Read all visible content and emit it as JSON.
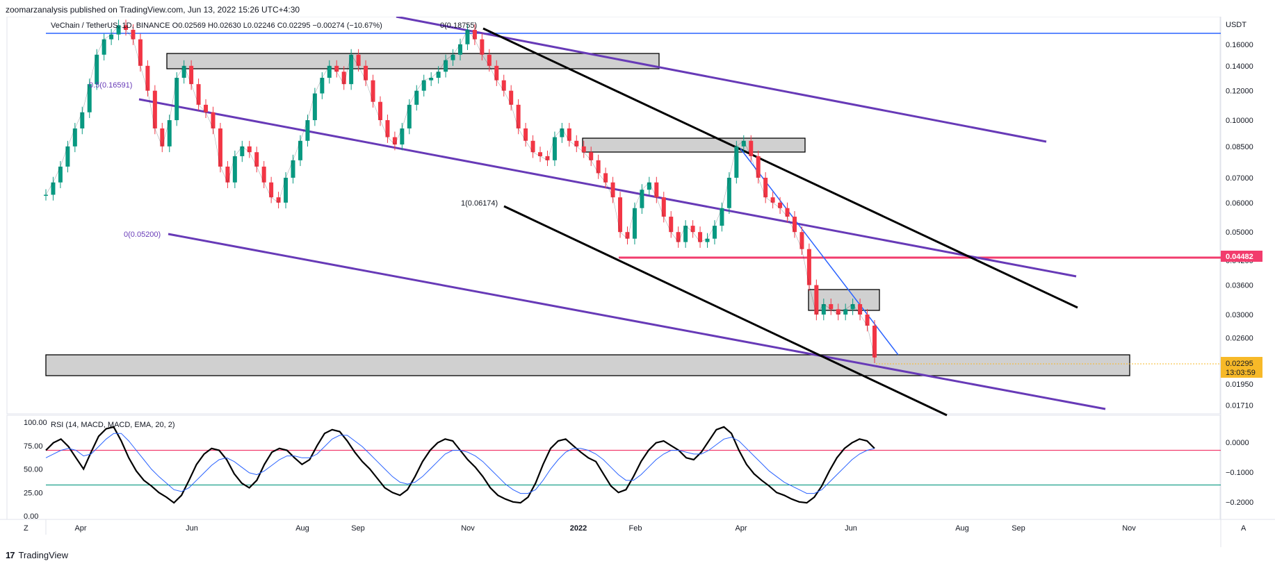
{
  "publish_line": "zoomarzanalysis published on TradingView.com, Jun 13, 2022 15:26 UTC+4:30",
  "footer_brand": "TradingView",
  "footer_logo": "17",
  "chart_data": [
    {
      "type": "line",
      "symbol_line": "VeChain / TetherUS, 1D, BINANCE  O0.02569  H0.02630  L0.02246  C0.02295  −0.00274 (−10.67%)",
      "currency": "USDT",
      "scale": "log",
      "ylim": [
        0.0165,
        0.185
      ],
      "y_ticks": [
        "0.16000",
        "0.14000",
        "0.12000",
        "0.10000",
        "0.08500",
        "0.07000",
        "0.06000",
        "0.05000",
        "0.04200",
        "0.03600",
        "0.03000",
        "0.02600",
        "0.01950",
        "0.01710"
      ],
      "x_ticks": [
        "Apr",
        "Jun",
        "Aug",
        "Sep",
        "Nov",
        "2022",
        "Feb",
        "Apr",
        "Jun",
        "Aug",
        "Sep",
        "Nov"
      ],
      "axis_corner_left": "Z",
      "axis_corner_right": "A",
      "last_price": "0.02295",
      "countdown": "13:03:59",
      "marked_level": "0.04482",
      "fib_labels": [
        "0(0.18755)",
        "0.5(0.16591)",
        "1(0.06174)",
        "0(0.05200)"
      ],
      "colors": {
        "up": "#089981",
        "down": "#f23645",
        "channel": "#673ab7",
        "level": "#f23c6d",
        "trend": "#2962ff",
        "price_tag": "#f7b928"
      },
      "series": [
        {
          "values": [
            0.063,
            0.068,
            0.075,
            0.085,
            0.095,
            0.105,
            0.125,
            0.15,
            0.165,
            0.17,
            0.18,
            0.175,
            0.165,
            0.14,
            0.12,
            0.095,
            0.085,
            0.1,
            0.13,
            0.14,
            0.125,
            0.11,
            0.105,
            0.095,
            0.075,
            0.068,
            0.08,
            0.085,
            0.082,
            0.075,
            0.068,
            0.062,
            0.06,
            0.07,
            0.078,
            0.088,
            0.1,
            0.118,
            0.13,
            0.14,
            0.135,
            0.125,
            0.15,
            0.14,
            0.128,
            0.112,
            0.1,
            0.09,
            0.086,
            0.095,
            0.11,
            0.12,
            0.128,
            0.13,
            0.135,
            0.145,
            0.15,
            0.16,
            0.175,
            0.165,
            0.15,
            0.14,
            0.128,
            0.12,
            0.11,
            0.095,
            0.088,
            0.082,
            0.08,
            0.078,
            0.09,
            0.095,
            0.088,
            0.085,
            0.082,
            0.078,
            0.072,
            0.068,
            0.062,
            0.05,
            0.048,
            0.058,
            0.065,
            0.068,
            0.062,
            0.055,
            0.05,
            0.047,
            0.052,
            0.05,
            0.047,
            0.048,
            0.052,
            0.058,
            0.07,
            0.085,
            0.088,
            0.08,
            0.07,
            0.062,
            0.06,
            0.058,
            0.055,
            0.05,
            0.045,
            0.036,
            0.03,
            0.032,
            0.031,
            0.03,
            0.031,
            0.032,
            0.03,
            0.028,
            0.023
          ]
        }
      ]
    },
    {
      "type": "line",
      "title": "RSI (14, MACD, MACD, EMA, 20, 2)",
      "ylim": [
        0,
        100
      ],
      "y_ticks": [
        "100.00",
        "75.00",
        "50.00",
        "25.00",
        "0.00"
      ],
      "right_ticks": [
        "0.0000",
        "−0.1000",
        "−0.2000"
      ],
      "upper_band": 70,
      "lower_band": 33,
      "series": [
        {
          "values": [
            70,
            78,
            82,
            74,
            62,
            50,
            68,
            85,
            93,
            95,
            80,
            62,
            48,
            38,
            32,
            25,
            20,
            14,
            22,
            38,
            55,
            66,
            72,
            70,
            60,
            45,
            35,
            30,
            38,
            55,
            68,
            72,
            70,
            62,
            55,
            60,
            75,
            88,
            92,
            90,
            80,
            68,
            58,
            50,
            40,
            30,
            25,
            22,
            28,
            42,
            58,
            70,
            78,
            82,
            80,
            70,
            60,
            52,
            42,
            30,
            22,
            18,
            15,
            14,
            20,
            35,
            55,
            72,
            80,
            82,
            75,
            68,
            62,
            58,
            45,
            32,
            25,
            28,
            42,
            58,
            70,
            78,
            80,
            75,
            70,
            62,
            60,
            68,
            80,
            92,
            95,
            88,
            70,
            55,
            45,
            38,
            32,
            25,
            22,
            18,
            15,
            14,
            20,
            32,
            48,
            62,
            72,
            78,
            82,
            80,
            72
          ]
        },
        {
          "values": [
            62,
            66,
            70,
            72,
            70,
            64,
            66,
            74,
            82,
            88,
            88,
            80,
            70,
            60,
            50,
            42,
            35,
            28,
            26,
            30,
            38,
            46,
            54,
            60,
            62,
            58,
            52,
            46,
            44,
            48,
            54,
            60,
            64,
            64,
            62,
            62,
            66,
            74,
            82,
            86,
            86,
            80,
            74,
            66,
            58,
            50,
            42,
            36,
            34,
            36,
            42,
            50,
            58,
            66,
            70,
            70,
            68,
            64,
            58,
            50,
            42,
            34,
            28,
            24,
            24,
            28,
            38,
            50,
            60,
            68,
            72,
            72,
            70,
            66,
            60,
            52,
            44,
            38,
            38,
            44,
            52,
            60,
            66,
            70,
            70,
            68,
            66,
            66,
            70,
            76,
            82,
            84,
            80,
            72,
            64,
            56,
            48,
            42,
            36,
            32,
            28,
            24,
            24,
            28,
            36,
            44,
            52,
            60,
            66,
            70,
            72
          ]
        }
      ]
    }
  ]
}
